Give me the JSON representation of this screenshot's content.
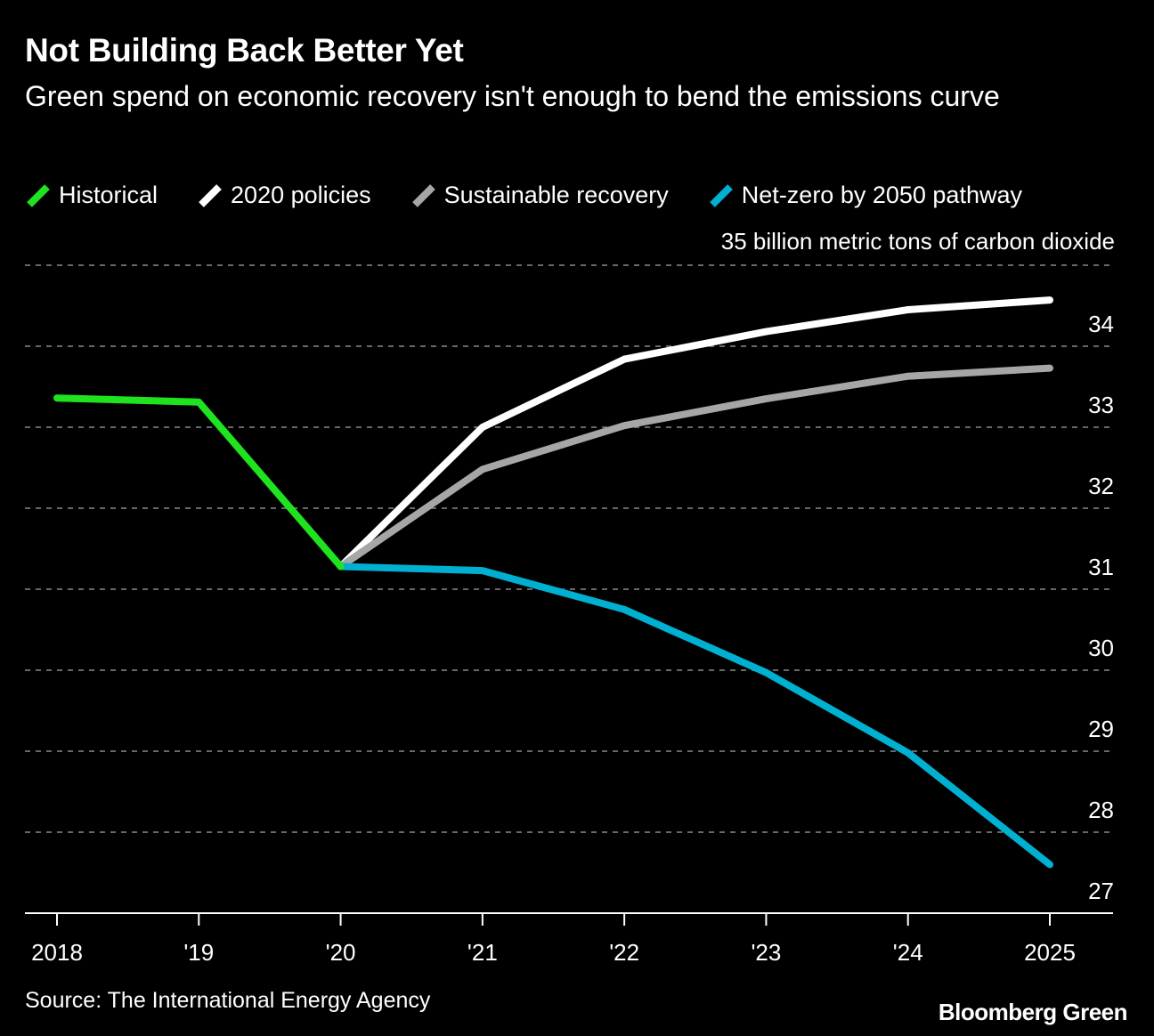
{
  "header": {
    "title": "Not Building Back Better Yet",
    "subtitle": "Green spend on economic recovery isn't enough to bend the emissions curve"
  },
  "legend": [
    {
      "label": "Historical",
      "color": "#1ee31e"
    },
    {
      "label": "2020 policies",
      "color": "#ffffff"
    },
    {
      "label": "Sustainable recovery",
      "color": "#a6a6a6"
    },
    {
      "label": "Net-zero by 2050 pathway",
      "color": "#00b0d1"
    }
  ],
  "footer": {
    "source": "Source: The International Energy Agency",
    "brand": "Bloomberg Green"
  },
  "chart_data": {
    "type": "line",
    "title": "Not Building Back Better Yet",
    "subtitle": "Green spend on economic recovery isn't enough to bend the emissions curve",
    "unit_label": "35 billion metric tons of carbon dioxide",
    "x": [
      2018,
      2019,
      2020,
      2021,
      2022,
      2023,
      2024,
      2025
    ],
    "x_tick_labels": [
      "2018",
      "'19",
      "'20",
      "'21",
      "'22",
      "'23",
      "'24",
      "2025"
    ],
    "ylim": [
      27,
      35
    ],
    "y_ticks": [
      27,
      28,
      29,
      30,
      31,
      32,
      33,
      34
    ],
    "y_tick_labels": [
      "27",
      "28",
      "29",
      "30",
      "31",
      "32",
      "33",
      "34"
    ],
    "grid": true,
    "y_axis_position": "right",
    "legend_placement": "top-left",
    "series": [
      {
        "name": "Historical",
        "color": "#1ee31e",
        "x": [
          2018,
          2019,
          2020
        ],
        "values": [
          33.36,
          33.31,
          31.28
        ]
      },
      {
        "name": "2020 policies",
        "color": "#ffffff",
        "x": [
          2020,
          2021,
          2022,
          2023,
          2024,
          2025
        ],
        "values": [
          31.28,
          33.0,
          33.84,
          34.18,
          34.45,
          34.57
        ]
      },
      {
        "name": "Sustainable recovery",
        "color": "#a6a6a6",
        "x": [
          2020,
          2021,
          2022,
          2023,
          2024,
          2025
        ],
        "values": [
          31.28,
          32.48,
          33.02,
          33.35,
          33.63,
          33.73
        ]
      },
      {
        "name": "Net-zero by 2050 pathway",
        "color": "#00b0d1",
        "x": [
          2020,
          2021,
          2022,
          2023,
          2024,
          2025
        ],
        "values": [
          31.28,
          31.23,
          30.75,
          29.97,
          28.98,
          27.6
        ]
      }
    ]
  }
}
